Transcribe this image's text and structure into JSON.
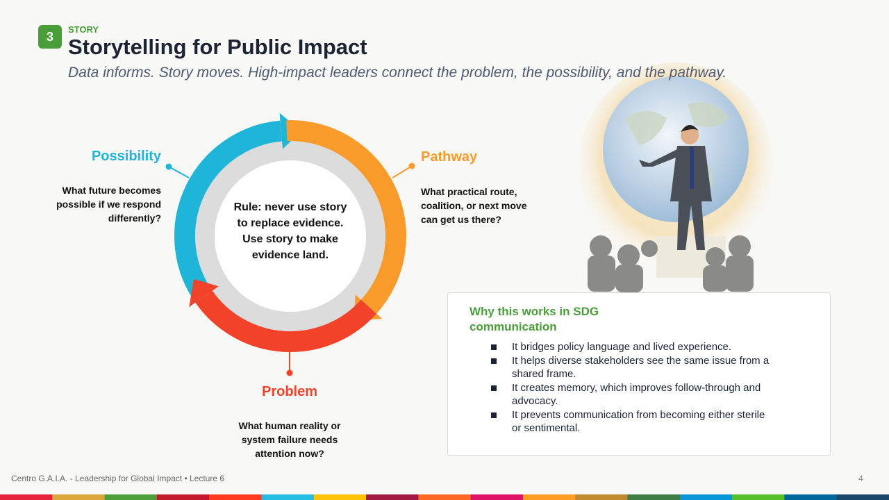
{
  "header": {
    "badge": "3",
    "kicker": "STORY",
    "title": "Storytelling for Public Impact",
    "subtitle": "Data informs. Story moves. High-impact leaders connect the problem, the possibility, and the pathway."
  },
  "cycle": {
    "center": "Rule: never use story to replace evidence. Use story to make evidence land.",
    "nodes": [
      {
        "label": "Possibility",
        "text": "What future becomes possible if we respond differently?"
      },
      {
        "label": "Pathway",
        "text": "What practical route, coalition, or next move can get us there?"
      },
      {
        "label": "Problem",
        "text": "What human reality or system failure needs attention now?"
      }
    ]
  },
  "card": {
    "title": "Why this works in SDG communication",
    "bullets": [
      "It bridges policy language and lived experience.",
      "It helps diverse stakeholders see the same issue from a shared frame.",
      "It creates memory, which improves follow-through and advocacy.",
      "It prevents communication from becoming either sterile or sentimental."
    ]
  },
  "footer": {
    "text": "Centro G.A.I.A. - Leadership for Global Impact • Lecture 6",
    "page": "4"
  }
}
